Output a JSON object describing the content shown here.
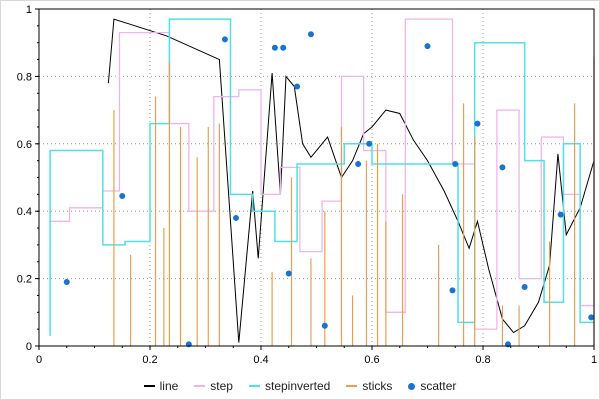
{
  "chart_data": {
    "type": "line",
    "title": "",
    "xlabel": "",
    "ylabel": "",
    "xlim": [
      0,
      1
    ],
    "ylim": [
      0,
      1
    ],
    "x_tick_labels": [
      "0",
      "0.2",
      "0.4",
      "0.6",
      "0.8",
      "1"
    ],
    "y_tick_labels": [
      "0",
      "0.2",
      "0.4",
      "0.6",
      "0.8",
      "1"
    ],
    "tick_values": [
      0,
      0.2,
      0.4,
      0.6,
      0.8,
      1
    ],
    "minor_tick_step": 0.05,
    "grid": "dotted",
    "grid_color": "#999999",
    "axis_color": "#000000",
    "legend_position": "bottom",
    "series": [
      {
        "name": "line",
        "type": "line",
        "color": "#000000",
        "points": [
          [
            0.125,
            0.78
          ],
          [
            0.135,
            0.97
          ],
          [
            0.23,
            0.92
          ],
          [
            0.325,
            0.85
          ],
          [
            0.36,
            0.01
          ],
          [
            0.385,
            0.46
          ],
          [
            0.395,
            0.26
          ],
          [
            0.42,
            0.81
          ],
          [
            0.435,
            0.45
          ],
          [
            0.445,
            0.8
          ],
          [
            0.46,
            0.77
          ],
          [
            0.475,
            0.6
          ],
          [
            0.49,
            0.56
          ],
          [
            0.52,
            0.62
          ],
          [
            0.545,
            0.5
          ],
          [
            0.565,
            0.55
          ],
          [
            0.585,
            0.63
          ],
          [
            0.6,
            0.65
          ],
          [
            0.625,
            0.7
          ],
          [
            0.65,
            0.69
          ],
          [
            0.675,
            0.61
          ],
          [
            0.7,
            0.55
          ],
          [
            0.73,
            0.46
          ],
          [
            0.755,
            0.37
          ],
          [
            0.775,
            0.29
          ],
          [
            0.79,
            0.37
          ],
          [
            0.81,
            0.23
          ],
          [
            0.835,
            0.08
          ],
          [
            0.855,
            0.04
          ],
          [
            0.875,
            0.06
          ],
          [
            0.9,
            0.13
          ],
          [
            0.92,
            0.24
          ],
          [
            0.935,
            0.57
          ],
          [
            0.95,
            0.33
          ],
          [
            0.975,
            0.41
          ],
          [
            1.0,
            0.55
          ]
        ]
      },
      {
        "name": "step",
        "type": "step",
        "color": "#F0B4EC",
        "points": [
          [
            0.02,
            0.37
          ],
          [
            0.055,
            0.41
          ],
          [
            0.09,
            0.41
          ],
          [
            0.115,
            0.46
          ],
          [
            0.145,
            0.93
          ],
          [
            0.2,
            0.93
          ],
          [
            0.235,
            0.66
          ],
          [
            0.27,
            0.4
          ],
          [
            0.315,
            0.74
          ],
          [
            0.36,
            0.76
          ],
          [
            0.4,
            0.45
          ],
          [
            0.435,
            0.53
          ],
          [
            0.47,
            0.28
          ],
          [
            0.51,
            0.43
          ],
          [
            0.545,
            0.8
          ],
          [
            0.585,
            0.58
          ],
          [
            0.625,
            0.1
          ],
          [
            0.66,
            0.97
          ],
          [
            0.71,
            0.97
          ],
          [
            0.745,
            0.54
          ],
          [
            0.785,
            0.05
          ],
          [
            0.825,
            0.7
          ],
          [
            0.865,
            0.2
          ],
          [
            0.905,
            0.62
          ],
          [
            0.945,
            0.45
          ],
          [
            0.975,
            0.12
          ],
          [
            1.0,
            0.85
          ]
        ]
      },
      {
        "name": "stepinverted",
        "type": "step-inverted",
        "color": "#4FE0EA",
        "points": [
          [
            0.02,
            0.03
          ],
          [
            0.06,
            0.58
          ],
          [
            0.115,
            0.58
          ],
          [
            0.155,
            0.3
          ],
          [
            0.2,
            0.31
          ],
          [
            0.235,
            0.66
          ],
          [
            0.27,
            0.97
          ],
          [
            0.345,
            0.97
          ],
          [
            0.385,
            0.45
          ],
          [
            0.425,
            0.4
          ],
          [
            0.465,
            0.31
          ],
          [
            0.505,
            0.54
          ],
          [
            0.55,
            0.54
          ],
          [
            0.6,
            0.6
          ],
          [
            0.64,
            0.54
          ],
          [
            0.7,
            0.54
          ],
          [
            0.755,
            0.54
          ],
          [
            0.785,
            0.07
          ],
          [
            0.82,
            0.9
          ],
          [
            0.875,
            0.9
          ],
          [
            0.91,
            0.55
          ],
          [
            0.945,
            0.13
          ],
          [
            0.975,
            0.6
          ],
          [
            1.0,
            0.07
          ]
        ]
      },
      {
        "name": "sticks",
        "type": "sticks",
        "color": "#E8A050",
        "points": [
          [
            0.135,
            0.7
          ],
          [
            0.165,
            0.27
          ],
          [
            0.21,
            0.74
          ],
          [
            0.225,
            0.35
          ],
          [
            0.235,
            0.84
          ],
          [
            0.255,
            0.65
          ],
          [
            0.285,
            0.56
          ],
          [
            0.305,
            0.65
          ],
          [
            0.325,
            0.66
          ],
          [
            0.42,
            0.22
          ],
          [
            0.455,
            0.5
          ],
          [
            0.49,
            0.26
          ],
          [
            0.515,
            0.4
          ],
          [
            0.545,
            0.65
          ],
          [
            0.565,
            0.15
          ],
          [
            0.59,
            0.55
          ],
          [
            0.61,
            0.6
          ],
          [
            0.625,
            0.37
          ],
          [
            0.655,
            0.45
          ],
          [
            0.72,
            0.3
          ],
          [
            0.765,
            0.72
          ],
          [
            0.785,
            0.62
          ],
          [
            0.835,
            0.12
          ],
          [
            0.865,
            0.12
          ],
          [
            0.92,
            0.31
          ],
          [
            0.965,
            0.72
          ],
          [
            1.0,
            0.86
          ]
        ]
      },
      {
        "name": "scatter",
        "type": "scatter",
        "color": "#1874CD",
        "points": [
          [
            0.05,
            0.19
          ],
          [
            0.15,
            0.445
          ],
          [
            0.27,
            0.005
          ],
          [
            0.335,
            0.91
          ],
          [
            0.355,
            0.38
          ],
          [
            0.425,
            0.885
          ],
          [
            0.44,
            0.885
          ],
          [
            0.45,
            0.215
          ],
          [
            0.465,
            0.77
          ],
          [
            0.49,
            0.925
          ],
          [
            0.515,
            0.06
          ],
          [
            0.575,
            0.54
          ],
          [
            0.595,
            0.6
          ],
          [
            0.7,
            0.89
          ],
          [
            0.745,
            0.165
          ],
          [
            0.75,
            0.54
          ],
          [
            0.79,
            0.66
          ],
          [
            0.835,
            0.53
          ],
          [
            0.845,
            0.005
          ],
          [
            0.875,
            0.175
          ],
          [
            0.94,
            0.39
          ],
          [
            0.995,
            0.085
          ]
        ]
      }
    ]
  }
}
